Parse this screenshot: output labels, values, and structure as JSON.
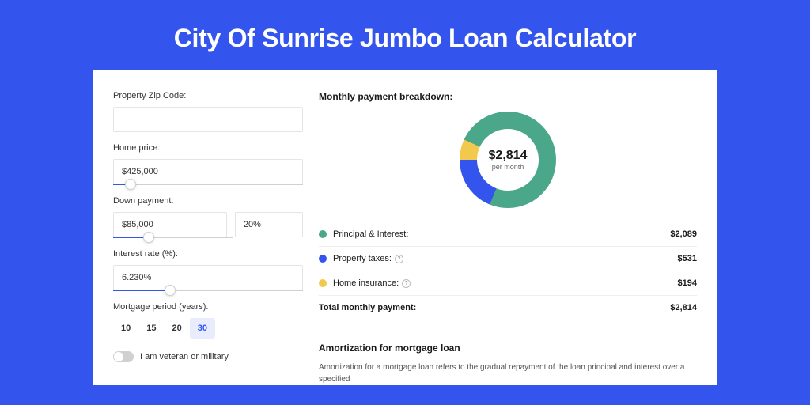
{
  "page": {
    "title": "City Of Sunrise Jumbo Loan Calculator"
  },
  "colors": {
    "page_bg": "#3355ee",
    "card_bg": "#ffffff",
    "accent": "#3355ee",
    "donut_principal": "#4aa789",
    "donut_taxes": "#3355ee",
    "donut_insurance": "#f2c94c",
    "border": "#e5e5e5",
    "slider_track": "#d0d0d0",
    "period_active_bg": "#e8ecfc"
  },
  "form": {
    "zip": {
      "label": "Property Zip Code:",
      "value": ""
    },
    "home_price": {
      "label": "Home price:",
      "value": "$425,000",
      "slider_pct": 9
    },
    "down_payment": {
      "label": "Down payment:",
      "amount": "$85,000",
      "percent": "20%",
      "slider_pct": 19
    },
    "interest_rate": {
      "label": "Interest rate (%):",
      "value": "6.230%",
      "slider_pct": 30
    },
    "mortgage_period": {
      "label": "Mortgage period (years):",
      "options": [
        "10",
        "15",
        "20",
        "30"
      ],
      "selected": "30"
    },
    "veteran": {
      "label": "I am veteran or military",
      "checked": false
    }
  },
  "breakdown": {
    "title": "Monthly payment breakdown:",
    "center_amount": "$2,814",
    "center_sub": "per month",
    "items": [
      {
        "label": "Principal & Interest:",
        "value": "$2,089",
        "color": "#4aa789",
        "pct": 74.2,
        "help": false
      },
      {
        "label": "Property taxes:",
        "value": "$531",
        "color": "#3355ee",
        "pct": 18.9,
        "help": true
      },
      {
        "label": "Home insurance:",
        "value": "$194",
        "color": "#f2c94c",
        "pct": 6.9,
        "help": true
      }
    ],
    "total": {
      "label": "Total monthly payment:",
      "value": "$2,814"
    }
  },
  "amortization": {
    "title": "Amortization for mortgage loan",
    "text": "Amortization for a mortgage loan refers to the gradual repayment of the loan principal and interest over a specified"
  }
}
